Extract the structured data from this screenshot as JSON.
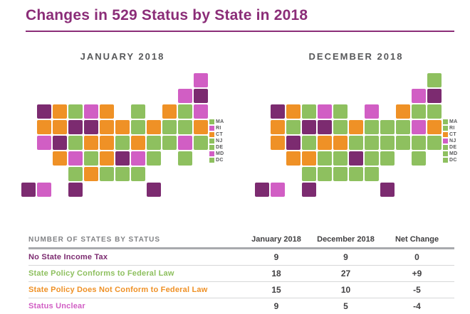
{
  "title": "Changes in 529 Status by State in 2018",
  "colors": {
    "purple": "#7c2b70",
    "green": "#8ec05f",
    "orange": "#ef9126",
    "magenta": "#d15ec4"
  },
  "maps": [
    {
      "key": "jan",
      "label": "JANUARY 2018"
    },
    {
      "key": "dec",
      "label": "DECEMBER 2018"
    }
  ],
  "legend_states": [
    "MA",
    "RI",
    "CT",
    "NJ",
    "DE",
    "MD",
    "DC"
  ],
  "states": [
    {
      "abbr": "ME",
      "row": 0,
      "col": 11,
      "jan": "magenta",
      "dec": "green"
    },
    {
      "abbr": "VT",
      "row": 1,
      "col": 10,
      "jan": "magenta",
      "dec": "magenta"
    },
    {
      "abbr": "NH",
      "row": 1,
      "col": 11,
      "jan": "purple",
      "dec": "purple"
    },
    {
      "abbr": "WA",
      "row": 2,
      "col": 1,
      "jan": "purple",
      "dec": "purple"
    },
    {
      "abbr": "MT",
      "row": 2,
      "col": 2,
      "jan": "orange",
      "dec": "orange"
    },
    {
      "abbr": "ND",
      "row": 2,
      "col": 3,
      "jan": "green",
      "dec": "green"
    },
    {
      "abbr": "MN",
      "row": 2,
      "col": 4,
      "jan": "magenta",
      "dec": "magenta"
    },
    {
      "abbr": "WI",
      "row": 2,
      "col": 5,
      "jan": "orange",
      "dec": "green"
    },
    {
      "abbr": "MI",
      "row": 2,
      "col": 7,
      "jan": "green",
      "dec": "magenta"
    },
    {
      "abbr": "NY",
      "row": 2,
      "col": 9,
      "jan": "orange",
      "dec": "orange"
    },
    {
      "abbr": "MA",
      "row": 2,
      "col": 10,
      "jan": "green",
      "dec": "green"
    },
    {
      "abbr": "RI",
      "row": 2,
      "col": 11,
      "jan": "magenta",
      "dec": "green"
    },
    {
      "abbr": "OR",
      "row": 3,
      "col": 1,
      "jan": "orange",
      "dec": "orange"
    },
    {
      "abbr": "ID",
      "row": 3,
      "col": 2,
      "jan": "orange",
      "dec": "green"
    },
    {
      "abbr": "WY",
      "row": 3,
      "col": 3,
      "jan": "purple",
      "dec": "purple"
    },
    {
      "abbr": "SD",
      "row": 3,
      "col": 4,
      "jan": "purple",
      "dec": "purple"
    },
    {
      "abbr": "IA",
      "row": 3,
      "col": 5,
      "jan": "orange",
      "dec": "green"
    },
    {
      "abbr": "IL",
      "row": 3,
      "col": 6,
      "jan": "orange",
      "dec": "orange"
    },
    {
      "abbr": "IN",
      "row": 3,
      "col": 7,
      "jan": "green",
      "dec": "green"
    },
    {
      "abbr": "OH",
      "row": 3,
      "col": 8,
      "jan": "orange",
      "dec": "green"
    },
    {
      "abbr": "PA",
      "row": 3,
      "col": 9,
      "jan": "green",
      "dec": "green"
    },
    {
      "abbr": "NJ",
      "row": 3,
      "col": 10,
      "jan": "green",
      "dec": "magenta"
    },
    {
      "abbr": "CT",
      "row": 3,
      "col": 11,
      "jan": "orange",
      "dec": "orange"
    },
    {
      "abbr": "CA",
      "row": 4,
      "col": 1,
      "jan": "magenta",
      "dec": "orange"
    },
    {
      "abbr": "NV",
      "row": 4,
      "col": 2,
      "jan": "purple",
      "dec": "purple"
    },
    {
      "abbr": "UT",
      "row": 4,
      "col": 3,
      "jan": "green",
      "dec": "green"
    },
    {
      "abbr": "CO",
      "row": 4,
      "col": 4,
      "jan": "orange",
      "dec": "orange"
    },
    {
      "abbr": "NE",
      "row": 4,
      "col": 5,
      "jan": "orange",
      "dec": "orange"
    },
    {
      "abbr": "MO",
      "row": 4,
      "col": 6,
      "jan": "green",
      "dec": "green"
    },
    {
      "abbr": "KY",
      "row": 4,
      "col": 7,
      "jan": "orange",
      "dec": "green"
    },
    {
      "abbr": "WV",
      "row": 4,
      "col": 8,
      "jan": "green",
      "dec": "green"
    },
    {
      "abbr": "VA",
      "row": 4,
      "col": 9,
      "jan": "green",
      "dec": "green"
    },
    {
      "abbr": "MD",
      "row": 4,
      "col": 10,
      "jan": "magenta",
      "dec": "green"
    },
    {
      "abbr": "DE",
      "row": 4,
      "col": 11,
      "jan": "green",
      "dec": "green"
    },
    {
      "abbr": "AZ",
      "row": 5,
      "col": 2,
      "jan": "orange",
      "dec": "orange"
    },
    {
      "abbr": "NM",
      "row": 5,
      "col": 3,
      "jan": "magenta",
      "dec": "orange"
    },
    {
      "abbr": "KS",
      "row": 5,
      "col": 4,
      "jan": "green",
      "dec": "green"
    },
    {
      "abbr": "AR",
      "row": 5,
      "col": 5,
      "jan": "orange",
      "dec": "green"
    },
    {
      "abbr": "TN",
      "row": 5,
      "col": 6,
      "jan": "purple",
      "dec": "purple"
    },
    {
      "abbr": "NC",
      "row": 5,
      "col": 7,
      "jan": "magenta",
      "dec": "green"
    },
    {
      "abbr": "SC",
      "row": 5,
      "col": 8,
      "jan": "green",
      "dec": "green"
    },
    {
      "abbr": "DC",
      "row": 5,
      "col": 10,
      "jan": "green",
      "dec": "green"
    },
    {
      "abbr": "OK",
      "row": 6,
      "col": 3,
      "jan": "green",
      "dec": "green"
    },
    {
      "abbr": "LA",
      "row": 6,
      "col": 4,
      "jan": "orange",
      "dec": "green"
    },
    {
      "abbr": "MS",
      "row": 6,
      "col": 5,
      "jan": "green",
      "dec": "green"
    },
    {
      "abbr": "AL",
      "row": 6,
      "col": 6,
      "jan": "green",
      "dec": "green"
    },
    {
      "abbr": "GA",
      "row": 6,
      "col": 7,
      "jan": "green",
      "dec": "green"
    },
    {
      "abbr": "AK",
      "row": 7,
      "col": 0,
      "jan": "purple",
      "dec": "purple"
    },
    {
      "abbr": "HI",
      "row": 7,
      "col": 1,
      "jan": "magenta",
      "dec": "magenta"
    },
    {
      "abbr": "TX",
      "row": 7,
      "col": 3,
      "jan": "purple",
      "dec": "purple"
    },
    {
      "abbr": "FL",
      "row": 7,
      "col": 8,
      "jan": "purple",
      "dec": "purple"
    }
  ],
  "table": {
    "headers": [
      "NUMBER OF STATES BY STATUS",
      "January 2018",
      "December 2018",
      "Net Change"
    ],
    "rows": [
      {
        "label": "No State Income Tax",
        "color": "purple",
        "jan": "9",
        "dec": "9",
        "net": "0"
      },
      {
        "label": "State Policy Conforms to Federal Law",
        "color": "green",
        "jan": "18",
        "dec": "27",
        "net": "+9"
      },
      {
        "label": "State Policy Does Not Conform to Federal Law",
        "color": "orange",
        "jan": "15",
        "dec": "10",
        "net": "-5"
      },
      {
        "label": "Status Unclear",
        "color": "magenta",
        "jan": "9",
        "dec": "5",
        "net": "-4"
      }
    ]
  },
  "chart_data": {
    "type": "heatmap",
    "subtype": "us-choropleth-pair",
    "title": "Changes in 529 Status by State in 2018",
    "panels": [
      "JANUARY 2018",
      "DECEMBER 2018"
    ],
    "legend_position": "right-of-each-map",
    "status_colors": {
      "No State Income Tax": "#7c2b70",
      "State Policy Conforms to Federal Law": "#8ec05f",
      "State Policy Does Not Conform to Federal Law": "#ef9126",
      "Status Unclear": "#d15ec4"
    },
    "summary_table": {
      "columns": [
        "NUMBER OF STATES BY STATUS",
        "January 2018",
        "December 2018",
        "Net Change"
      ],
      "rows": [
        [
          "No State Income Tax",
          9,
          9,
          0
        ],
        [
          "State Policy Conforms to Federal Law",
          18,
          27,
          9
        ],
        [
          "State Policy Does Not Conform to Federal Law",
          15,
          10,
          -5
        ],
        [
          "Status Unclear",
          9,
          5,
          -4
        ]
      ]
    }
  }
}
